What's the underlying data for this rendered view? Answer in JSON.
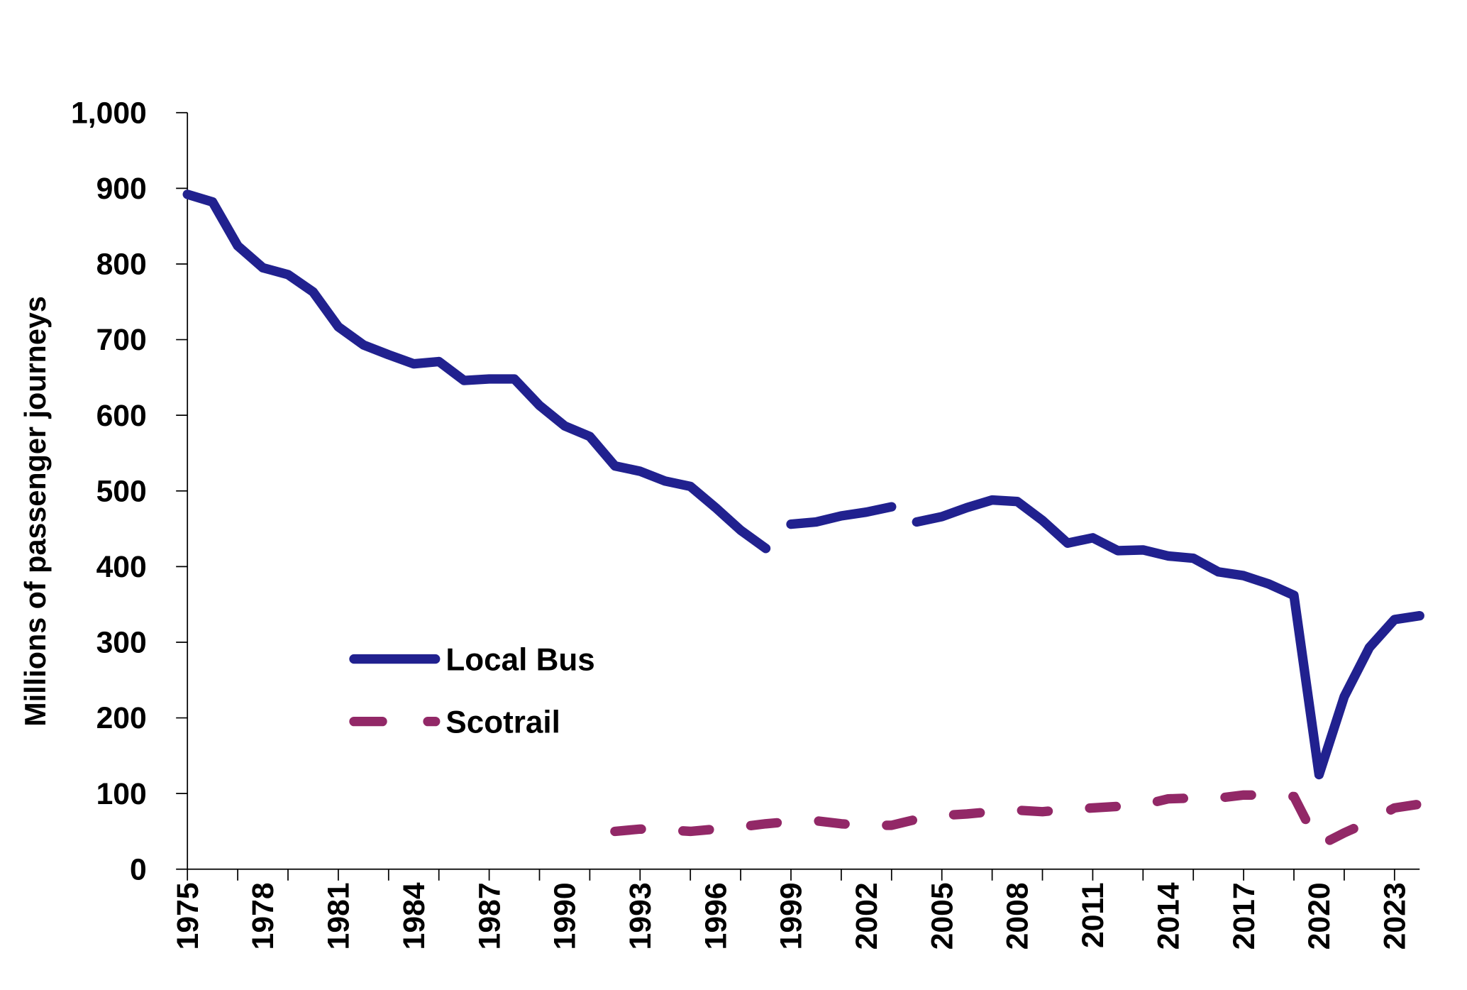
{
  "chart_data": {
    "type": "line",
    "title": "",
    "xlabel": "",
    "ylabel": "Millions of passenger journeys",
    "xlim": [
      1975,
      2024
    ],
    "ylim": [
      0,
      1000
    ],
    "y_ticks": [
      "0",
      "100",
      "200",
      "300",
      "400",
      "500",
      "600",
      "700",
      "800",
      "900",
      "1,000"
    ],
    "x_tick_labels": [
      "1975",
      "1978",
      "1981",
      "1984",
      "1987",
      "1990",
      "1993",
      "1996",
      "1999",
      "2002",
      "2005",
      "2008",
      "2011",
      "2014",
      "2017",
      "2020",
      "2023"
    ],
    "grid": false,
    "legend_placement": "center-left",
    "x": [
      1975,
      1976,
      1977,
      1978,
      1979,
      1980,
      1981,
      1982,
      1983,
      1984,
      1985,
      1986,
      1987,
      1988,
      1989,
      1990,
      1991,
      1992,
      1993,
      1994,
      1995,
      1996,
      1997,
      1998,
      1999,
      2000,
      2001,
      2002,
      2003,
      2004,
      2005,
      2006,
      2007,
      2008,
      2009,
      2010,
      2011,
      2012,
      2013,
      2014,
      2015,
      2016,
      2017,
      2018,
      2019,
      2020,
      2021,
      2022,
      2023,
      2024
    ],
    "series": [
      {
        "name": "Local Bus",
        "color": "#21218f",
        "style": "solid",
        "values": [
          892,
          882,
          824,
          795,
          786,
          763,
          717,
          693,
          680,
          668,
          671,
          646,
          648,
          648,
          613,
          586,
          572,
          533,
          526,
          513,
          506,
          478,
          448,
          424,
          456,
          459,
          467,
          472,
          479,
          459,
          466,
          478,
          488,
          486,
          461,
          431,
          438,
          421,
          422,
          414,
          411,
          393,
          388,
          377,
          362,
          125,
          228,
          293,
          330,
          335
        ],
        "breaks_after": [
          1998,
          2003
        ]
      },
      {
        "name": "Scotrail",
        "color": "#922867",
        "style": "dashed",
        "values": [
          null,
          null,
          null,
          null,
          null,
          null,
          null,
          null,
          null,
          null,
          null,
          null,
          null,
          null,
          null,
          null,
          null,
          50,
          53,
          52,
          50,
          53,
          56,
          60,
          63,
          64,
          60,
          58,
          58,
          66,
          71,
          73,
          76,
          78,
          76,
          79,
          81,
          83,
          85,
          93,
          94,
          94,
          98,
          98,
          96,
          31,
          48,
          63,
          81,
          86
        ]
      }
    ]
  }
}
